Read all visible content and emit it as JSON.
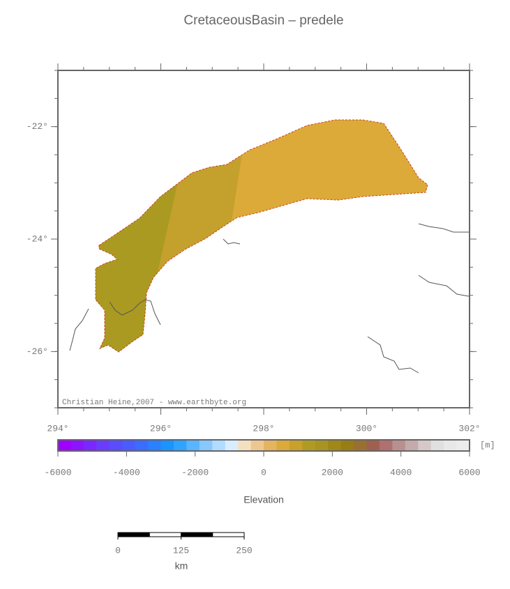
{
  "map": {
    "title": "CretaceousBasin – predele",
    "credit": "Christian Heine,2007 - www.earthbyte.org",
    "xlim": [
      294,
      302
    ],
    "ylim": [
      -27,
      -21
    ],
    "xticks": [
      {
        "value": 294,
        "label": "294°"
      },
      {
        "value": 296,
        "label": "296°"
      },
      {
        "value": 298,
        "label": "298°"
      },
      {
        "value": 300,
        "label": "300°"
      },
      {
        "value": 302,
        "label": "302°"
      }
    ],
    "yticks": [
      {
        "value": -22,
        "label": "-22°"
      },
      {
        "value": -24,
        "label": "-24°"
      },
      {
        "value": -26,
        "label": "-26°"
      }
    ],
    "colorbar": {
      "title": "Elevation",
      "unit": "[m]",
      "lim": [
        -6000,
        6000
      ],
      "ticks": [
        -6000,
        -4000,
        -2000,
        0,
        2000,
        4000,
        6000
      ],
      "colors": [
        "#a000ff",
        "#8c14ff",
        "#7a28ff",
        "#6a3cff",
        "#5a4cff",
        "#4a5cff",
        "#3a6cff",
        "#2a80ff",
        "#1a94ff",
        "#2ea4ff",
        "#5ab4ff",
        "#86c8ff",
        "#b0dcff",
        "#d8eeff",
        "#f4e0c0",
        "#ecc890",
        "#e4b460",
        "#dcaa38",
        "#c8a02a",
        "#b09a22",
        "#a89420",
        "#a08818",
        "#987c14",
        "#9a7030",
        "#a06050",
        "#b07070",
        "#b89090",
        "#c4aaaa",
        "#d4c8c8",
        "#e0e0e0",
        "#e8e8e8",
        "#ececec"
      ]
    },
    "scalebar": {
      "unit": "km",
      "lim": [
        0,
        250
      ],
      "ticks": [
        0,
        125,
        250
      ]
    }
  }
}
